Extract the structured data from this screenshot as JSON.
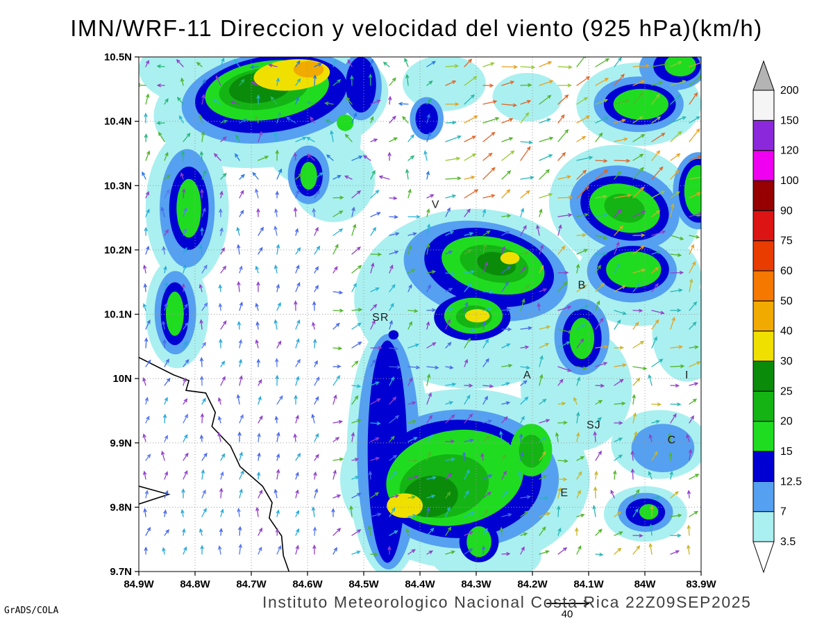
{
  "title": "IMN/WRF-11 Direccion y velocidad del viento (925 hPa)(km/h)",
  "footer": {
    "institute": "Instituto Meteorologico Nacional Costa Rica 22Z09SEP2025",
    "credit": "GrADS/COLA"
  },
  "chart_data": {
    "type": "heatmap",
    "subtype": "filled-contour wind speed with wind-direction vector field",
    "title": "IMN/WRF-11 Direccion y velocidad del viento (925 hPa)(km/h)",
    "xlabel": "",
    "ylabel": "",
    "units": "km/h",
    "level_hpa": 925,
    "x_ticks": [
      "84.9W",
      "84.8W",
      "84.7W",
      "84.6W",
      "84.5W",
      "84.4W",
      "84.3W",
      "84.2W",
      "84.1W",
      "84W",
      "83.9W"
    ],
    "y_ticks": [
      "10.5N",
      "10.4N",
      "10.3N",
      "10.2N",
      "10.1N",
      "10N",
      "9.9N",
      "9.8N",
      "9.7N"
    ],
    "lon_range_deg_w": [
      84.9,
      83.9
    ],
    "lat_range_deg_n": [
      9.7,
      10.5
    ],
    "grid": "dotted",
    "legend_position": "right-colorbar",
    "colorbar": {
      "levels": [
        3.5,
        7,
        12.5,
        15,
        20,
        25,
        30,
        40,
        50,
        60,
        75,
        90,
        100,
        120,
        150,
        200
      ],
      "band_colors": [
        "#aaf0f0",
        "#55a0f0",
        "#0000d2",
        "#20dc20",
        "#14b414",
        "#0a8c0a",
        "#f0e000",
        "#f0aa00",
        "#f57800",
        "#e83c00",
        "#dc1414",
        "#960000",
        "#f000f0",
        "#8c28dc",
        "#f5f5f5"
      ],
      "under_color": "#ffffff",
      "over_color": "#b4b4b4"
    },
    "stations": [
      {
        "label": "V",
        "fx": 0.528,
        "fy": 0.287
      },
      {
        "label": "B",
        "fx": 0.788,
        "fy": 0.443
      },
      {
        "label": "SR",
        "fx": 0.43,
        "fy": 0.506
      },
      {
        "label": "A",
        "fx": 0.691,
        "fy": 0.618
      },
      {
        "label": "I",
        "fx": 0.975,
        "fy": 0.618
      },
      {
        "label": "SJ",
        "fx": 0.809,
        "fy": 0.715
      },
      {
        "label": "C",
        "fx": 0.948,
        "fy": 0.744
      },
      {
        "label": "E",
        "fx": 0.757,
        "fy": 0.847
      }
    ],
    "contours": [
      {
        "lv": 3.5,
        "e": [
          0.235,
          0.092,
          0.21,
          0.121,
          -8
        ]
      },
      {
        "lv": 3.5,
        "e": [
          0.099,
          0.024,
          0.099,
          0.067,
          0
        ]
      },
      {
        "lv": 3.5,
        "e": [
          0.086,
          0.294,
          0.074,
          0.148,
          0
        ]
      },
      {
        "lv": 3.5,
        "e": [
          0.068,
          0.497,
          0.056,
          0.108,
          0
        ]
      },
      {
        "lv": 3.5,
        "e": [
          0.309,
          0.159,
          0.086,
          0.094,
          0
        ]
      },
      {
        "lv": 3.5,
        "e": [
          0.346,
          0.24,
          0.074,
          0.081,
          0
        ]
      },
      {
        "lv": 3.5,
        "e": [
          0.543,
          0.051,
          0.074,
          0.054,
          0
        ]
      },
      {
        "lv": 3.5,
        "e": [
          0.691,
          0.078,
          0.062,
          0.047,
          0
        ]
      },
      {
        "lv": 3.5,
        "e": [
          0.889,
          0.092,
          0.111,
          0.081,
          0
        ]
      },
      {
        "lv": 3.5,
        "e": [
          0.593,
          0.47,
          0.21,
          0.175,
          0
        ]
      },
      {
        "lv": 3.5,
        "e": [
          0.58,
          0.82,
          0.222,
          0.175,
          0
        ]
      },
      {
        "lv": 3.5,
        "e": [
          0.444,
          0.767,
          0.074,
          0.243,
          0
        ]
      },
      {
        "lv": 3.5,
        "e": [
          0.864,
          0.294,
          0.136,
          0.121,
          15
        ]
      },
      {
        "lv": 3.5,
        "e": [
          0.889,
          0.429,
          0.111,
          0.094,
          0
        ]
      },
      {
        "lv": 3.5,
        "e": [
          0.975,
          0.537,
          0.062,
          0.094,
          0
        ]
      },
      {
        "lv": 3.5,
        "e": [
          0.778,
          0.645,
          0.099,
          0.121,
          0
        ]
      },
      {
        "lv": 3.5,
        "e": [
          0.926,
          0.753,
          0.086,
          0.067,
          0
        ]
      },
      {
        "lv": 3.5,
        "e": [
          0.901,
          0.888,
          0.074,
          0.054,
          0
        ]
      },
      {
        "lv": 3.5,
        "e": [
          0.617,
          0.969,
          0.099,
          0.054,
          0
        ]
      },
      {
        "lv": 7,
        "e": [
          0.235,
          0.078,
          0.16,
          0.088,
          -8
        ]
      },
      {
        "lv": 7,
        "e": [
          0.086,
          0.294,
          0.049,
          0.115,
          0
        ]
      },
      {
        "lv": 7,
        "e": [
          0.065,
          0.497,
          0.037,
          0.081,
          0
        ]
      },
      {
        "lv": 7,
        "e": [
          0.302,
          0.229,
          0.037,
          0.057,
          0
        ]
      },
      {
        "lv": 7,
        "e": [
          0.395,
          0.058,
          0.037,
          0.065,
          0
        ]
      },
      {
        "lv": 7,
        "e": [
          0.512,
          0.12,
          0.03,
          0.042,
          0
        ]
      },
      {
        "lv": 7,
        "e": [
          0.617,
          0.416,
          0.148,
          0.094,
          12
        ]
      },
      {
        "lv": 7,
        "e": [
          0.574,
          0.82,
          0.173,
          0.135,
          0
        ]
      },
      {
        "lv": 7,
        "e": [
          0.444,
          0.767,
          0.056,
          0.229,
          0
        ]
      },
      {
        "lv": 7,
        "e": [
          0.864,
          0.294,
          0.099,
          0.081,
          15
        ]
      },
      {
        "lv": 7,
        "e": [
          0.877,
          0.416,
          0.08,
          0.061,
          0
        ]
      },
      {
        "lv": 7,
        "e": [
          0.889,
          0.092,
          0.08,
          0.054,
          0
        ]
      },
      {
        "lv": 7,
        "e": [
          0.95,
          0.02,
          0.06,
          0.045,
          0
        ]
      },
      {
        "lv": 7,
        "e": [
          0.788,
          0.544,
          0.049,
          0.074,
          0
        ]
      },
      {
        "lv": 7,
        "e": [
          0.932,
          0.76,
          0.056,
          0.047,
          0
        ]
      },
      {
        "lv": 7,
        "e": [
          0.901,
          0.885,
          0.049,
          0.038,
          0
        ]
      },
      {
        "lv": 7,
        "e": [
          0.995,
          0.26,
          0.045,
          0.075,
          0
        ]
      },
      {
        "lv": 12.5,
        "e": [
          0.235,
          0.072,
          0.136,
          0.074,
          -8
        ]
      },
      {
        "lv": 12.5,
        "e": [
          0.089,
          0.294,
          0.035,
          0.081,
          0
        ]
      },
      {
        "lv": 12.5,
        "e": [
          0.064,
          0.499,
          0.025,
          0.061,
          0
        ]
      },
      {
        "lv": 12.5,
        "e": [
          0.623,
          0.409,
          0.117,
          0.074,
          12
        ]
      },
      {
        "lv": 12.5,
        "e": [
          0.593,
          0.506,
          0.068,
          0.045,
          0
        ]
      },
      {
        "lv": 12.5,
        "e": [
          0.568,
          0.82,
          0.148,
          0.115,
          0
        ]
      },
      {
        "lv": 12.5,
        "e": [
          0.442,
          0.767,
          0.035,
          0.216,
          0
        ]
      },
      {
        "lv": 12.5,
        "e": [
          0.864,
          0.294,
          0.08,
          0.061,
          15
        ]
      },
      {
        "lv": 12.5,
        "e": [
          0.879,
          0.413,
          0.064,
          0.046,
          0
        ]
      },
      {
        "lv": 12.5,
        "e": [
          0.891,
          0.092,
          0.064,
          0.04,
          0
        ]
      },
      {
        "lv": 12.5,
        "e": [
          0.957,
          0.018,
          0.042,
          0.032,
          0
        ]
      },
      {
        "lv": 12.5,
        "e": [
          0.788,
          0.547,
          0.035,
          0.057,
          0
        ]
      },
      {
        "lv": 12.5,
        "e": [
          0.302,
          0.231,
          0.025,
          0.04,
          0
        ]
      },
      {
        "lv": 12.5,
        "e": [
          0.395,
          0.054,
          0.027,
          0.054,
          0
        ]
      },
      {
        "lv": 12.5,
        "e": [
          0.512,
          0.12,
          0.02,
          0.03,
          0
        ]
      },
      {
        "lv": 12.5,
        "e": [
          0.453,
          0.54,
          0.009,
          0.009,
          0
        ]
      },
      {
        "lv": 12.5,
        "e": [
          0.901,
          0.885,
          0.035,
          0.027,
          0
        ]
      },
      {
        "lv": 12.5,
        "e": [
          0.605,
          0.942,
          0.035,
          0.04,
          0
        ]
      },
      {
        "lv": 12.5,
        "e": [
          0.995,
          0.26,
          0.035,
          0.062,
          0
        ]
      },
      {
        "lv": 15,
        "e": [
          0.228,
          0.065,
          0.111,
          0.057,
          -8
        ]
      },
      {
        "lv": 15,
        "e": [
          0.089,
          0.294,
          0.022,
          0.057,
          0
        ]
      },
      {
        "lv": 15,
        "e": [
          0.064,
          0.499,
          0.016,
          0.043,
          0
        ]
      },
      {
        "lv": 15,
        "e": [
          0.63,
          0.405,
          0.093,
          0.054,
          12
        ]
      },
      {
        "lv": 15,
        "e": [
          0.595,
          0.503,
          0.052,
          0.035,
          0
        ]
      },
      {
        "lv": 15,
        "e": [
          0.562,
          0.818,
          0.123,
          0.092,
          -10
        ]
      },
      {
        "lv": 15,
        "e": [
          0.864,
          0.294,
          0.064,
          0.046,
          15
        ]
      },
      {
        "lv": 15,
        "e": [
          0.88,
          0.413,
          0.049,
          0.035,
          0
        ]
      },
      {
        "lv": 15,
        "e": [
          0.893,
          0.092,
          0.049,
          0.03,
          0
        ]
      },
      {
        "lv": 15,
        "e": [
          0.963,
          0.016,
          0.028,
          0.022,
          0
        ]
      },
      {
        "lv": 15,
        "e": [
          0.788,
          0.547,
          0.022,
          0.04,
          0
        ]
      },
      {
        "lv": 15,
        "e": [
          0.302,
          0.231,
          0.015,
          0.027,
          0
        ]
      },
      {
        "lv": 15,
        "e": [
          0.605,
          0.942,
          0.022,
          0.03,
          0
        ]
      },
      {
        "lv": 15,
        "e": [
          0.698,
          0.764,
          0.037,
          0.051,
          0
        ]
      },
      {
        "lv": 15,
        "e": [
          0.367,
          0.128,
          0.015,
          0.016,
          0
        ]
      },
      {
        "lv": 15,
        "e": [
          0.907,
          0.884,
          0.017,
          0.015,
          0
        ]
      },
      {
        "lv": 15,
        "e": [
          0.995,
          0.26,
          0.025,
          0.05,
          0
        ]
      },
      {
        "lv": 20,
        "e": [
          0.222,
          0.062,
          0.08,
          0.04,
          -8
        ]
      },
      {
        "lv": 20,
        "e": [
          0.632,
          0.402,
          0.062,
          0.035,
          12
        ]
      },
      {
        "lv": 20,
        "e": [
          0.543,
          0.834,
          0.08,
          0.061,
          -10
        ]
      },
      {
        "lv": 20,
        "e": [
          0.864,
          0.294,
          0.037,
          0.027,
          15
        ]
      },
      {
        "lv": 20,
        "e": [
          0.698,
          0.766,
          0.022,
          0.032,
          0
        ]
      },
      {
        "lv": 20,
        "e": [
          0.596,
          0.505,
          0.032,
          0.022,
          0
        ]
      },
      {
        "lv": 25,
        "e": [
          0.216,
          0.059,
          0.056,
          0.03,
          -8
        ]
      },
      {
        "lv": 25,
        "e": [
          0.519,
          0.854,
          0.049,
          0.04,
          -10
        ]
      },
      {
        "lv": 25,
        "e": [
          0.636,
          0.402,
          0.035,
          0.022,
          12
        ]
      },
      {
        "lv": 30,
        "e": [
          0.272,
          0.035,
          0.068,
          0.03,
          -5
        ]
      },
      {
        "lv": 30,
        "e": [
          0.66,
          0.391,
          0.017,
          0.012,
          0
        ]
      },
      {
        "lv": 30,
        "e": [
          0.602,
          0.503,
          0.022,
          0.013,
          0
        ]
      },
      {
        "lv": 30,
        "e": [
          0.473,
          0.872,
          0.032,
          0.024,
          0
        ]
      },
      {
        "lv": 40,
        "e": [
          0.302,
          0.024,
          0.027,
          0.016,
          0
        ]
      }
    ],
    "coastline": [
      [
        0.0,
        0.584
      ],
      [
        0.062,
        0.618
      ],
      [
        0.089,
        0.629
      ],
      [
        0.084,
        0.648
      ],
      [
        0.119,
        0.653
      ],
      [
        0.136,
        0.691
      ],
      [
        0.13,
        0.718
      ],
      [
        0.163,
        0.756
      ],
      [
        0.18,
        0.796
      ],
      [
        0.22,
        0.834
      ],
      [
        0.237,
        0.866
      ],
      [
        0.232,
        0.896
      ],
      [
        0.254,
        0.931
      ],
      [
        0.257,
        0.969
      ],
      [
        0.267,
        1.0
      ]
    ],
    "coastline_peninsula": [
      [
        0.0,
        0.834
      ],
      [
        0.053,
        0.85
      ],
      [
        0.0,
        0.869
      ]
    ],
    "vector_field": {
      "grid_step": 27,
      "seed": 12,
      "key_label": "40",
      "regions": [
        {
          "name": "top-right",
          "xmin": 0.52,
          "ymax": 0.28,
          "dir": 25,
          "jitter": 30,
          "lmin": 14,
          "lmax": 24,
          "colors": [
            "#e8a020",
            "#50b428",
            "#96c832",
            "#e06428",
            "#28b4b4"
          ]
        },
        {
          "name": "top-left",
          "xmax": 0.52,
          "ymax": 0.26,
          "dir": 100,
          "jitter": 85,
          "lmin": 9,
          "lmax": 16,
          "colors": [
            "#28b478",
            "#2878e8",
            "#9040c8",
            "#28b4d2",
            "#50b428"
          ]
        },
        {
          "name": "left-column",
          "xmax": 0.33,
          "dir": 80,
          "jitter": 28,
          "lmin": 9,
          "lmax": 14,
          "colors": [
            "#4868e8",
            "#28a8d8",
            "#9040c8",
            "#5878f0"
          ]
        },
        {
          "name": "right-mid",
          "xmin": 0.72,
          "ymax": 0.62,
          "dir": 30,
          "jitter": 50,
          "lmin": 12,
          "lmax": 20,
          "colors": [
            "#50b428",
            "#c8b428",
            "#e8a020",
            "#28b4b4",
            "#9040c8"
          ]
        },
        {
          "name": "bottom-right",
          "xmin": 0.7,
          "dir": 55,
          "jitter": 60,
          "lmin": 10,
          "lmax": 16,
          "colors": [
            "#50b428",
            "#28b4b4",
            "#c8b428",
            "#9040c8"
          ]
        },
        {
          "name": "center",
          "ymax": 0.72,
          "dir": 35,
          "jitter": 45,
          "lmin": 10,
          "lmax": 17,
          "colors": [
            "#28b4d2",
            "#50b428",
            "#4868e8",
            "#9040c8"
          ]
        },
        {
          "name": "bottom-center",
          "dir": 50,
          "jitter": 55,
          "lmin": 9,
          "lmax": 15,
          "colors": [
            "#50b428",
            "#28b4d2",
            "#9040c8",
            "#4868e8"
          ]
        }
      ]
    }
  }
}
